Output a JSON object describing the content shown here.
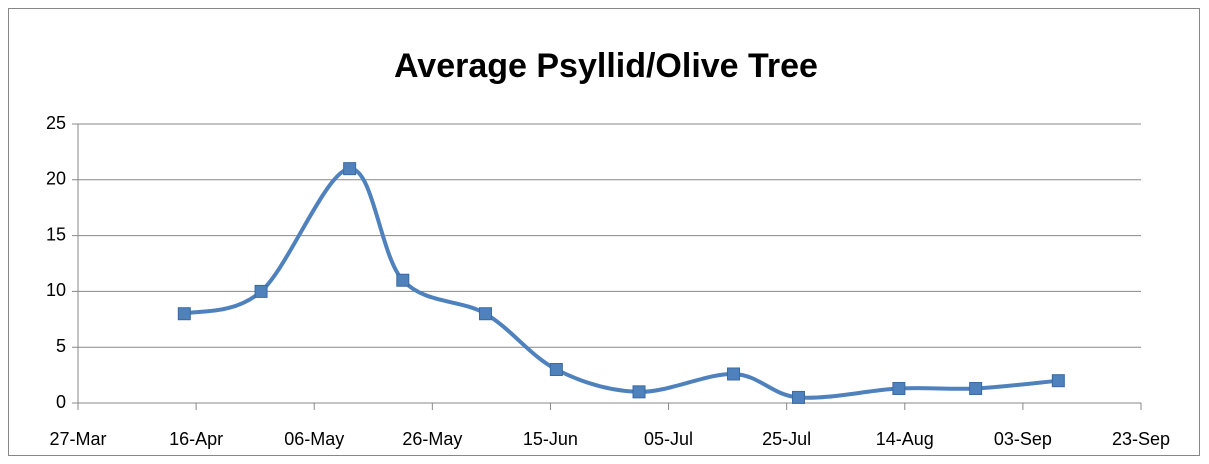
{
  "chart_data": {
    "type": "line",
    "title": "Average Psyllid/Olive Tree",
    "x": [
      "14-Apr",
      "27-Apr",
      "12-May",
      "21-May",
      "04-Jun",
      "16-Jun",
      "30-Jun",
      "16-Jul",
      "27-Jul",
      "13-Aug",
      "26-Aug",
      "09-Sep"
    ],
    "series": [
      {
        "name": "Average Psyllid/Olive Tree",
        "color": "#4f81bd",
        "values": [
          8,
          10,
          21,
          11,
          8,
          3,
          1,
          2.6,
          0.5,
          1.3,
          1.3,
          2
        ]
      }
    ],
    "xlim": [
      "27-Mar",
      "23-Sep"
    ],
    "xticks": [
      "27-Mar",
      "16-Apr",
      "06-May",
      "26-May",
      "15-Jun",
      "05-Jul",
      "25-Jul",
      "14-Aug",
      "03-Sep",
      "23-Sep"
    ],
    "ylim": [
      0,
      25
    ],
    "yticks": [
      0,
      5,
      10,
      15,
      20,
      25
    ],
    "grid": true,
    "smooth": true
  }
}
